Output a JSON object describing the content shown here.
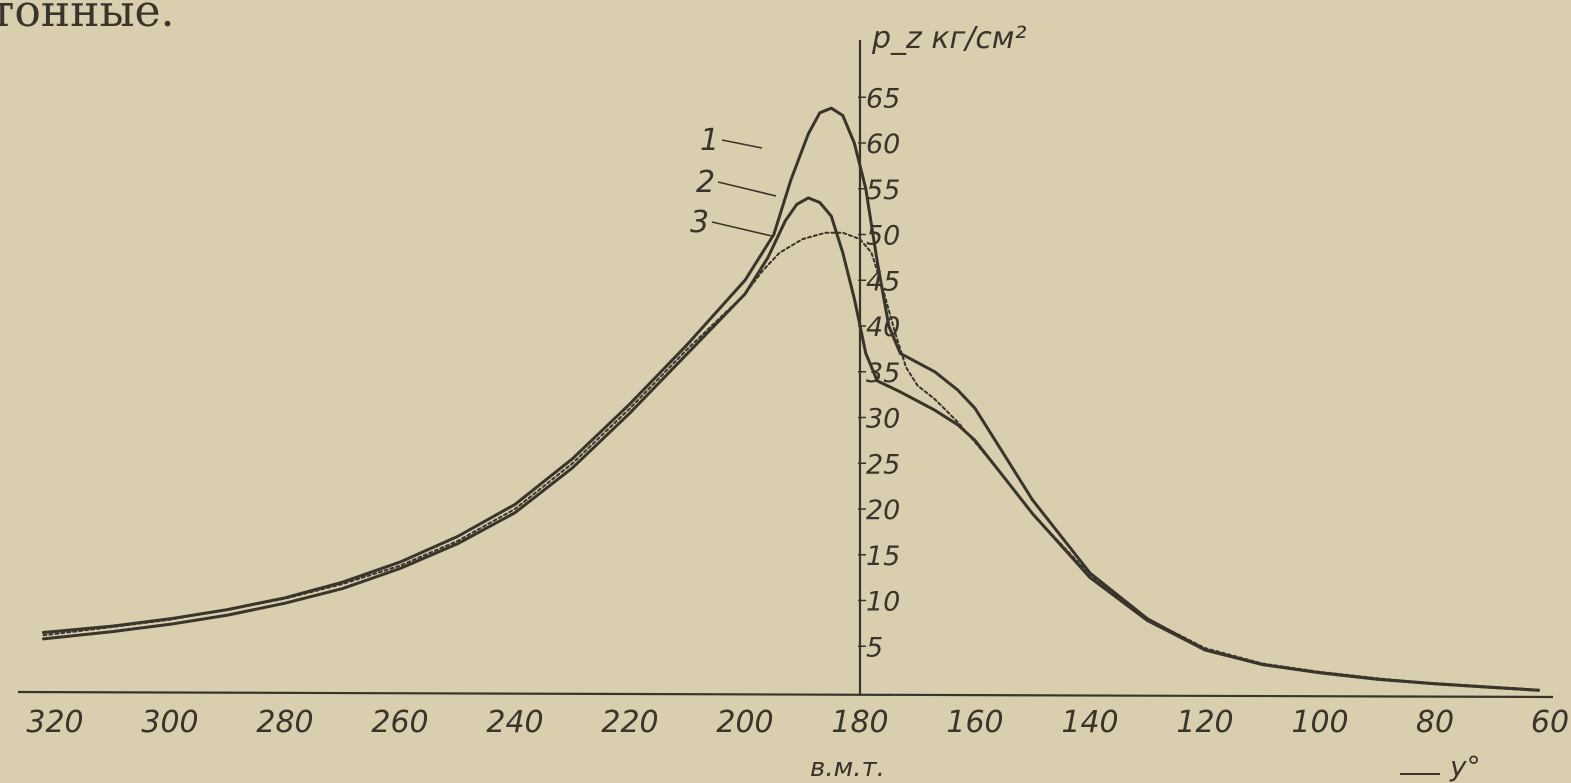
{
  "header_fragment": "тонные.",
  "chart_data": {
    "type": "line",
    "ylabel": "p_z кг/см²",
    "xlabel": "y°",
    "x_marker_label": "в.м.т.",
    "x_reversed": true,
    "xlim": [
      322,
      58
    ],
    "ylim": [
      0,
      67
    ],
    "x_ticks": [
      320,
      300,
      280,
      260,
      240,
      220,
      200,
      180,
      160,
      140,
      120,
      100,
      80,
      60
    ],
    "y_ticks": [
      5,
      10,
      15,
      20,
      25,
      30,
      35,
      40,
      45,
      50,
      55,
      60,
      65
    ],
    "grid": false,
    "legend": "numbered leader labels near peaks",
    "series": [
      {
        "name": "1",
        "style": "solid",
        "points": [
          [
            322,
            6.5
          ],
          [
            310,
            7.2
          ],
          [
            300,
            8
          ],
          [
            290,
            9
          ],
          [
            280,
            10.3
          ],
          [
            270,
            12
          ],
          [
            260,
            14.2
          ],
          [
            250,
            17
          ],
          [
            240,
            20.5
          ],
          [
            230,
            25.5
          ],
          [
            220,
            31.5
          ],
          [
            210,
            38
          ],
          [
            200,
            45
          ],
          [
            195,
            50
          ],
          [
            192,
            56
          ],
          [
            189,
            61
          ],
          [
            187,
            63.3
          ],
          [
            185,
            63.8
          ],
          [
            183,
            63
          ],
          [
            181,
            60
          ],
          [
            179,
            55
          ],
          [
            177,
            47
          ],
          [
            175,
            40
          ],
          [
            173,
            37
          ],
          [
            170,
            36
          ],
          [
            167,
            35
          ],
          [
            163,
            33
          ],
          [
            160,
            31
          ],
          [
            155,
            26
          ],
          [
            150,
            21
          ],
          [
            140,
            13
          ],
          [
            130,
            8
          ],
          [
            120,
            4.6
          ],
          [
            110,
            3
          ],
          [
            100,
            2.1
          ],
          [
            90,
            1.4
          ],
          [
            80,
            0.9
          ],
          [
            70,
            0.5
          ],
          [
            62,
            0.2
          ]
        ]
      },
      {
        "name": "2",
        "style": "solid",
        "points": [
          [
            322,
            5.8
          ],
          [
            310,
            6.6
          ],
          [
            300,
            7.4
          ],
          [
            290,
            8.4
          ],
          [
            280,
            9.7
          ],
          [
            270,
            11.3
          ],
          [
            260,
            13.5
          ],
          [
            250,
            16.2
          ],
          [
            240,
            19.6
          ],
          [
            230,
            24.5
          ],
          [
            220,
            30.5
          ],
          [
            210,
            37
          ],
          [
            200,
            43.5
          ],
          [
            196,
            47.5
          ],
          [
            193,
            51.5
          ],
          [
            191,
            53.3
          ],
          [
            189,
            54
          ],
          [
            187,
            53.5
          ],
          [
            185,
            52
          ],
          [
            183,
            48
          ],
          [
            181,
            43
          ],
          [
            179,
            37
          ],
          [
            177,
            34
          ],
          [
            175,
            33.4
          ],
          [
            173,
            32.8
          ],
          [
            170,
            31.8
          ],
          [
            167,
            30.8
          ],
          [
            163,
            29.2
          ],
          [
            160,
            27.5
          ],
          [
            155,
            23.5
          ],
          [
            150,
            19.5
          ],
          [
            140,
            12.5
          ],
          [
            130,
            7.8
          ],
          [
            120,
            4.6
          ],
          [
            110,
            3
          ],
          [
            100,
            2.1
          ],
          [
            90,
            1.4
          ],
          [
            80,
            0.9
          ],
          [
            70,
            0.5
          ],
          [
            62,
            0.2
          ]
        ]
      },
      {
        "name": "3",
        "style": "dotted",
        "points": [
          [
            322,
            6.2
          ],
          [
            310,
            7.1
          ],
          [
            300,
            7.9
          ],
          [
            290,
            9
          ],
          [
            280,
            10.2
          ],
          [
            270,
            11.8
          ],
          [
            260,
            13.8
          ],
          [
            250,
            16.5
          ],
          [
            240,
            20
          ],
          [
            230,
            25
          ],
          [
            220,
            31
          ],
          [
            210,
            37.5
          ],
          [
            200,
            43.5
          ],
          [
            197,
            46
          ],
          [
            194,
            48
          ],
          [
            190,
            49.5
          ],
          [
            186,
            50.2
          ],
          [
            183,
            50.2
          ],
          [
            180,
            49.5
          ],
          [
            178,
            48
          ],
          [
            176,
            44
          ],
          [
            174,
            39.5
          ],
          [
            172,
            35.5
          ],
          [
            170,
            33.5
          ],
          [
            167,
            32
          ],
          [
            163,
            29.5
          ],
          [
            160,
            27.3
          ],
          [
            155,
            23.5
          ],
          [
            150,
            19.5
          ],
          [
            140,
            12.8
          ],
          [
            130,
            8
          ],
          [
            120,
            4.8
          ],
          [
            110,
            3.1
          ],
          [
            100,
            2.2
          ],
          [
            90,
            1.5
          ],
          [
            80,
            0.9
          ],
          [
            70,
            0.5
          ],
          [
            62,
            0.2
          ]
        ]
      }
    ]
  }
}
